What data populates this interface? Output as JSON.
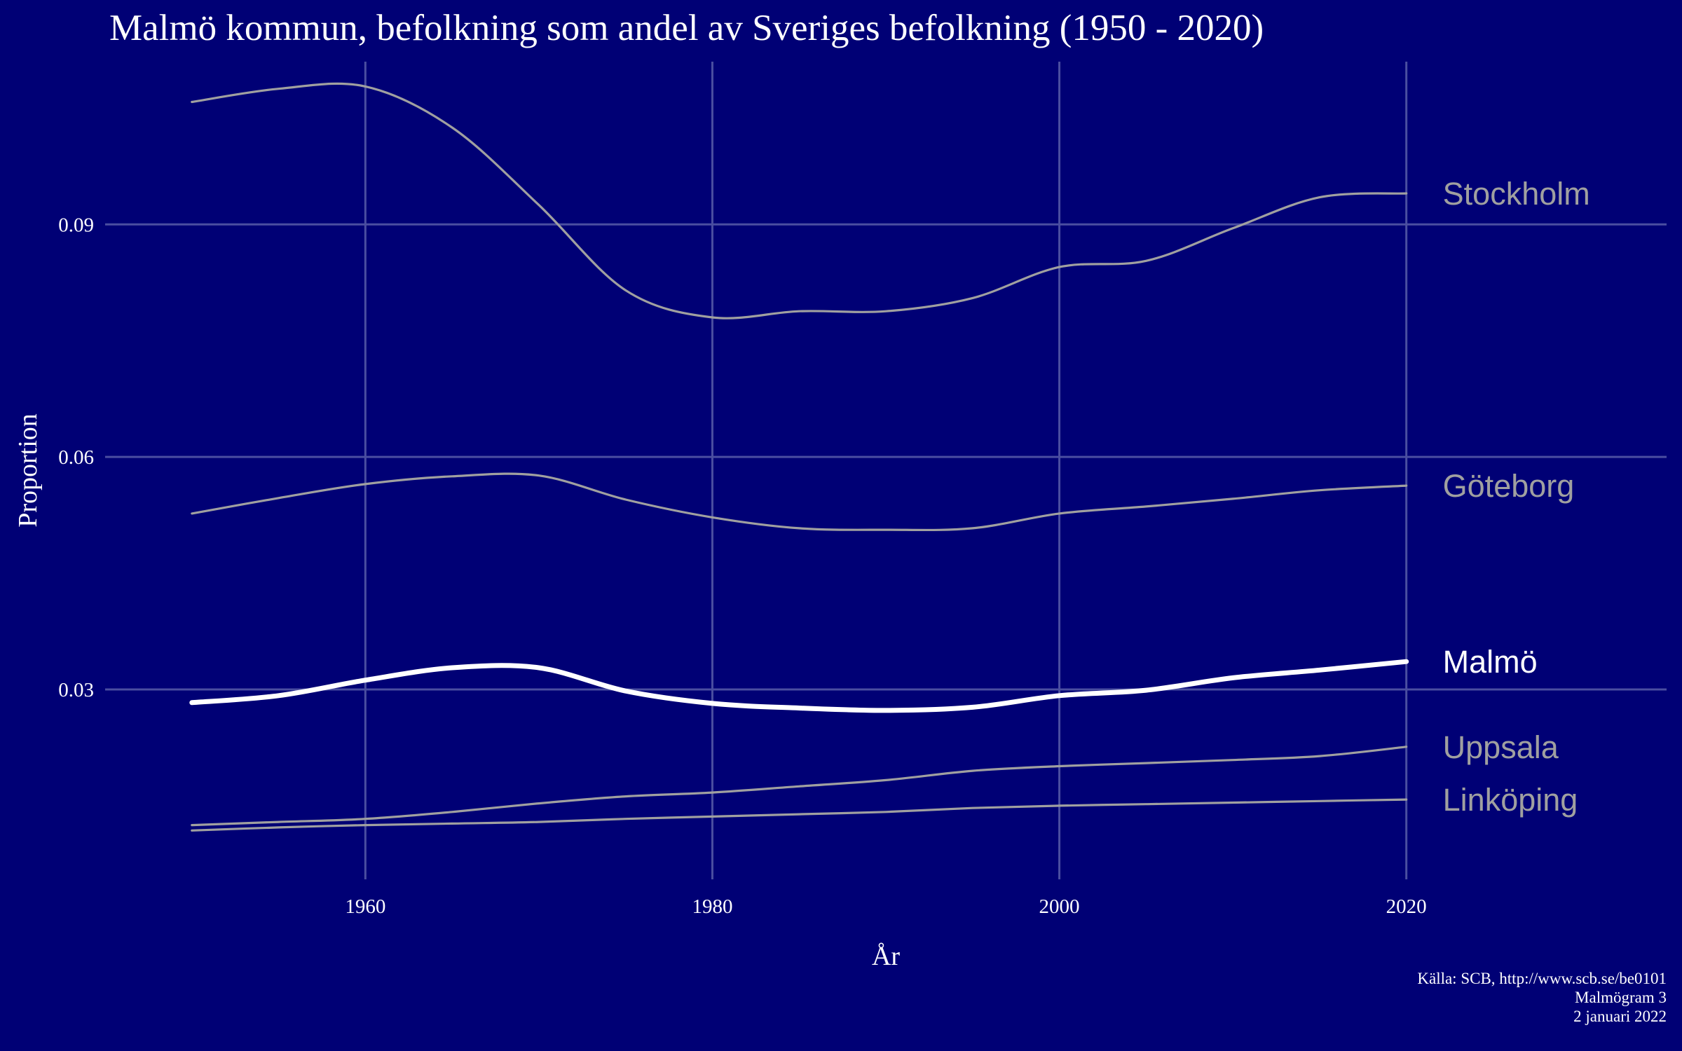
{
  "chart_data": {
    "type": "line",
    "title": "Malmö kommun, befolkning som andel av Sveriges befolkning (1950 - 2020)",
    "xlabel": "År",
    "ylabel": "Proportion",
    "xlim": [
      1945,
      2035
    ],
    "ylim": [
      0.0055,
      0.111
    ],
    "x_ticks": [
      1960,
      1980,
      2000,
      2020
    ],
    "x_tick_labels": [
      "1960",
      "1980",
      "2000",
      "2020"
    ],
    "y_ticks": [
      0.03,
      0.06,
      0.09
    ],
    "y_tick_labels": [
      "0.03",
      "0.06",
      "0.09"
    ],
    "grid": true,
    "legend": "direct labels at right end of lines",
    "x": [
      1950,
      1955,
      1960,
      1965,
      1970,
      1975,
      1980,
      1985,
      1990,
      1995,
      2000,
      2005,
      2010,
      2015,
      2020
    ],
    "series": [
      {
        "name": "Stockholm",
        "color": "#a0a0a0",
        "values": [
          0.1058,
          0.1075,
          0.1078,
          0.1025,
          0.0925,
          0.0815,
          0.078,
          0.0788,
          0.0788,
          0.0805,
          0.0845,
          0.0853,
          0.0895,
          0.0935,
          0.094
        ]
      },
      {
        "name": "Göteborg",
        "color": "#a0a0a0",
        "values": [
          0.0527,
          0.0547,
          0.0565,
          0.0575,
          0.0576,
          0.0545,
          0.0522,
          0.0508,
          0.0506,
          0.0508,
          0.0527,
          0.0536,
          0.0546,
          0.0557,
          0.0563
        ]
      },
      {
        "name": "Malmö",
        "color": "#ffffff",
        "values": [
          0.0283,
          0.0292,
          0.0312,
          0.0328,
          0.0328,
          0.0298,
          0.0282,
          0.0276,
          0.0273,
          0.0277,
          0.0292,
          0.0299,
          0.0315,
          0.0325,
          0.0336
        ]
      },
      {
        "name": "Uppsala",
        "color": "#a0a0a0",
        "values": [
          0.0125,
          0.0129,
          0.0133,
          0.0142,
          0.0153,
          0.0162,
          0.0167,
          0.0175,
          0.0183,
          0.0195,
          0.0201,
          0.0205,
          0.0209,
          0.0214,
          0.0226
        ]
      },
      {
        "name": "Linköping",
        "color": "#a0a0a0",
        "values": [
          0.0118,
          0.0122,
          0.0125,
          0.0127,
          0.0129,
          0.0133,
          0.0136,
          0.0139,
          0.0142,
          0.0147,
          0.015,
          0.0152,
          0.0154,
          0.0156,
          0.0158
        ]
      }
    ]
  },
  "caption": {
    "source": "Källa: SCB, http://www.scb.se/be0101",
    "series": "Malmögram 3",
    "date": "2 januari 2022"
  }
}
